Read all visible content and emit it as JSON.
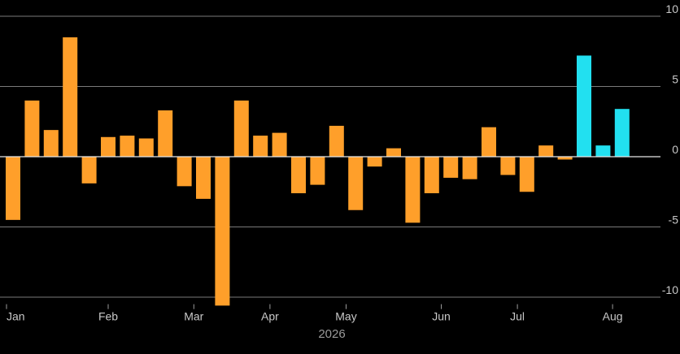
{
  "chart_data": {
    "type": "bar",
    "xlabel": "2026",
    "ylabel": "",
    "ylim": [
      -10.5,
      10.5
    ],
    "yticks": [
      {
        "value": 10,
        "label": "10"
      },
      {
        "value": 5,
        "label": "5"
      },
      {
        "value": 0,
        "label": "0"
      },
      {
        "value": -5,
        "label": "-5"
      },
      {
        "value": -10,
        "label": "-10"
      }
    ],
    "x_tick_labels": [
      {
        "label": "Jan",
        "at": 0
      },
      {
        "label": "Feb",
        "at": 5
      },
      {
        "label": "Mar",
        "at": 9.5
      },
      {
        "label": "Apr",
        "at": 13.5
      },
      {
        "label": "May",
        "at": 17.5
      },
      {
        "label": "Jun",
        "at": 22.5
      },
      {
        "label": "Jul",
        "at": 26.5
      },
      {
        "label": "Aug",
        "at": 31.5
      }
    ],
    "colors": {
      "base": "#ff9f2a",
      "highlight": "#22e0f0"
    },
    "grid": true,
    "values": [
      -4.5,
      4.0,
      1.9,
      8.5,
      -1.9,
      1.4,
      1.5,
      1.3,
      3.3,
      -2.1,
      -3.0,
      -10.6,
      4.0,
      1.5,
      1.7,
      -2.6,
      -2.0,
      2.2,
      -3.8,
      -0.7,
      0.6,
      -4.7,
      -2.6,
      -1.5,
      -1.6,
      2.1,
      -1.3,
      -2.5,
      0.8,
      -0.2,
      7.2,
      0.8,
      3.4
    ],
    "highlight_from_index": 30
  }
}
